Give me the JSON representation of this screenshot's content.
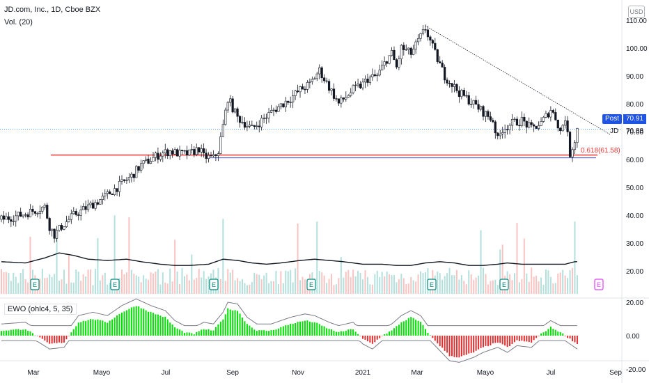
{
  "header": {
    "title": "JD.com, Inc., 1D, Cboe BZX",
    "volume_label": "Vol. (20)",
    "ewo_label": "EWO (ohlc4, 5, 35)"
  },
  "currency": "USD",
  "price_tag": {
    "label": "Post",
    "value": "70.91",
    "symbol": "JD",
    "last": "70.88"
  },
  "fib_label": "0.618(61.58)",
  "colors": {
    "up": "#26a69a",
    "down": "#ef5350",
    "candle": "#131722",
    "ewo_up": "#00e000",
    "ewo_down": "#e03030",
    "support": "#e53935",
    "support2": "#3f51b5"
  },
  "chart_data": {
    "type": "candlestick",
    "price_axis": {
      "ticks": [
        "110.00",
        "100.00",
        "90.00",
        "80.00",
        "70.00",
        "60.00",
        "50.00",
        "40.00",
        "30.00",
        "20.00"
      ],
      "range": [
        10,
        114
      ]
    },
    "ewo_axis": {
      "ticks": [
        "20.00",
        "0.00",
        "-20.00"
      ]
    },
    "x_ticks": [
      "Mar",
      "Mayo",
      "Jul",
      "Sep",
      "Nov",
      "2021",
      "Mar",
      "Mayo",
      "Jul",
      "Sep"
    ],
    "price_path": [
      [
        0,
        38.5
      ],
      [
        8,
        40
      ],
      [
        18,
        43
      ],
      [
        20,
        36
      ],
      [
        22,
        33
      ],
      [
        25,
        36
      ],
      [
        30,
        40
      ],
      [
        36,
        43
      ],
      [
        42,
        46
      ],
      [
        48,
        50
      ],
      [
        54,
        54
      ],
      [
        58,
        58
      ],
      [
        62,
        60
      ],
      [
        66,
        62
      ],
      [
        70,
        63
      ],
      [
        74,
        62
      ],
      [
        78,
        62
      ],
      [
        82,
        64
      ],
      [
        84,
        61
      ],
      [
        88,
        60.5
      ],
      [
        90,
        63
      ],
      [
        92,
        72
      ],
      [
        94,
        82
      ],
      [
        98,
        75
      ],
      [
        104,
        71
      ],
      [
        112,
        77
      ],
      [
        120,
        82
      ],
      [
        124,
        85
      ],
      [
        128,
        87
      ],
      [
        132,
        92
      ],
      [
        136,
        86
      ],
      [
        140,
        80
      ],
      [
        146,
        85
      ],
      [
        150,
        87
      ],
      [
        152,
        89
      ],
      [
        156,
        90
      ],
      [
        160,
        96
      ],
      [
        162,
        98
      ],
      [
        164,
        93
      ],
      [
        166,
        100
      ],
      [
        170,
        98
      ],
      [
        174,
        104
      ],
      [
        176,
        107
      ],
      [
        180,
        98
      ],
      [
        184,
        90
      ],
      [
        190,
        84
      ],
      [
        196,
        80
      ],
      [
        200,
        77
      ],
      [
        204,
        74
      ],
      [
        206,
        67
      ],
      [
        208,
        71
      ],
      [
        212,
        73
      ],
      [
        216,
        74
      ],
      [
        220,
        71
      ],
      [
        224,
        73
      ],
      [
        228,
        78
      ],
      [
        230,
        75
      ],
      [
        232,
        70
      ],
      [
        234,
        75
      ],
      [
        236,
        62
      ],
      [
        238,
        67
      ],
      [
        239,
        71
      ]
    ],
    "fib_level": 61.58,
    "volume_sma_path": [
      [
        0,
        19
      ],
      [
        10,
        18
      ],
      [
        18,
        22
      ],
      [
        24,
        26
      ],
      [
        30,
        24
      ],
      [
        36,
        21
      ],
      [
        44,
        20
      ],
      [
        52,
        21
      ],
      [
        58,
        19
      ],
      [
        66,
        17
      ],
      [
        72,
        16
      ],
      [
        78,
        16
      ],
      [
        86,
        17
      ],
      [
        92,
        21
      ],
      [
        98,
        20
      ],
      [
        104,
        18
      ],
      [
        110,
        17
      ],
      [
        116,
        18
      ],
      [
        124,
        20
      ],
      [
        130,
        21
      ],
      [
        136,
        20
      ],
      [
        142,
        19
      ],
      [
        150,
        17
      ],
      [
        158,
        17
      ],
      [
        164,
        16
      ],
      [
        170,
        16
      ],
      [
        176,
        18
      ],
      [
        182,
        19
      ],
      [
        188,
        18
      ],
      [
        194,
        16
      ],
      [
        200,
        16
      ],
      [
        206,
        17
      ],
      [
        210,
        18
      ],
      [
        216,
        17
      ],
      [
        222,
        17
      ],
      [
        228,
        17
      ],
      [
        234,
        17
      ],
      [
        238,
        19
      ]
    ],
    "ewo_path": [
      [
        0,
        3
      ],
      [
        10,
        4
      ],
      [
        20,
        -5
      ],
      [
        26,
        -4
      ],
      [
        32,
        8
      ],
      [
        38,
        10
      ],
      [
        44,
        8
      ],
      [
        50,
        14
      ],
      [
        56,
        18
      ],
      [
        62,
        14
      ],
      [
        68,
        11
      ],
      [
        72,
        5
      ],
      [
        76,
        2
      ],
      [
        80,
        1
      ],
      [
        84,
        4
      ],
      [
        88,
        3
      ],
      [
        92,
        10
      ],
      [
        94,
        16
      ],
      [
        98,
        15
      ],
      [
        102,
        7
      ],
      [
        106,
        3
      ],
      [
        112,
        3
      ],
      [
        120,
        7
      ],
      [
        126,
        9
      ],
      [
        130,
        8
      ],
      [
        136,
        4
      ],
      [
        140,
        2
      ],
      [
        146,
        4
      ],
      [
        150,
        -2
      ],
      [
        154,
        -5
      ],
      [
        158,
        0
      ],
      [
        162,
        3
      ],
      [
        166,
        8
      ],
      [
        170,
        11
      ],
      [
        174,
        8
      ],
      [
        178,
        0
      ],
      [
        182,
        -6
      ],
      [
        186,
        -12
      ],
      [
        190,
        -13
      ],
      [
        196,
        -10
      ],
      [
        200,
        -7
      ],
      [
        206,
        -4
      ],
      [
        210,
        -7
      ],
      [
        214,
        -3
      ],
      [
        220,
        -4
      ],
      [
        224,
        1
      ],
      [
        228,
        5
      ],
      [
        232,
        2
      ],
      [
        236,
        -2
      ],
      [
        239,
        -5
      ]
    ],
    "earnings_markers": [
      "E",
      "E",
      "E",
      "E",
      "E",
      "E",
      "E"
    ]
  }
}
